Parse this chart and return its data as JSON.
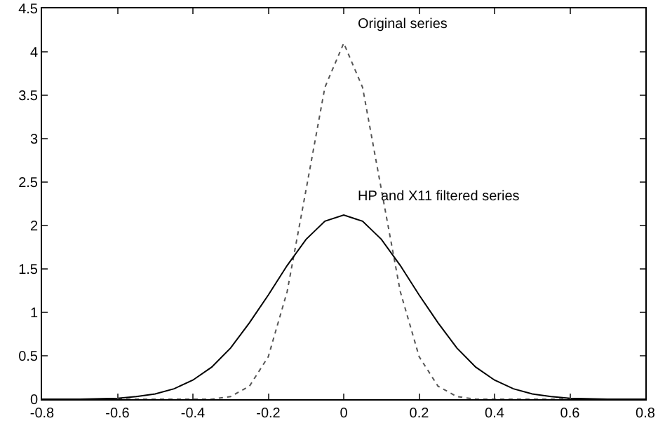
{
  "chart_data": {
    "type": "line",
    "xlim": [
      -0.8,
      0.8
    ],
    "xticks": [
      -0.8,
      -0.6,
      -0.4,
      -0.2,
      0,
      0.2,
      0.4,
      0.6,
      0.8
    ],
    "ylim": [
      0,
      4.5
    ],
    "yticks": [
      0,
      0.5,
      1,
      1.5,
      2,
      2.5,
      3,
      3.5,
      4,
      4.5
    ],
    "grid": false,
    "legend": false,
    "marker": "none",
    "series": [
      {
        "name": "Original series",
        "color": "#555555",
        "line_style": "dotted",
        "x": [
          -0.8,
          -0.4,
          -0.35,
          -0.3,
          -0.25,
          -0.2,
          -0.15,
          -0.1,
          -0.05,
          0,
          0.05,
          0.1,
          0.15,
          0.2,
          0.25,
          0.3,
          0.35,
          0.4,
          0.8
        ],
        "values": [
          0,
          0,
          0,
          0.03,
          0.15,
          0.49,
          1.24,
          2.41,
          3.59,
          4.1,
          3.59,
          2.41,
          1.24,
          0.49,
          0.15,
          0.03,
          0,
          0,
          0
        ]
      },
      {
        "name": "HP and X11 filtered series",
        "color": "#000000",
        "line_style": "solid",
        "x": [
          -0.8,
          -0.7,
          -0.6,
          -0.55,
          -0.5,
          -0.45,
          -0.4,
          -0.35,
          -0.3,
          -0.25,
          -0.2,
          -0.15,
          -0.1,
          -0.05,
          0,
          0.05,
          0.1,
          0.15,
          0.2,
          0.25,
          0.3,
          0.35,
          0.4,
          0.45,
          0.5,
          0.55,
          0.6,
          0.7,
          0.8
        ],
        "values": [
          0,
          0,
          0.01,
          0.03,
          0.06,
          0.12,
          0.22,
          0.37,
          0.59,
          0.88,
          1.2,
          1.54,
          1.84,
          2.05,
          2.12,
          2.05,
          1.84,
          1.54,
          1.2,
          0.88,
          0.59,
          0.37,
          0.22,
          0.12,
          0.06,
          0.03,
          0.01,
          0,
          0
        ]
      }
    ]
  }
}
